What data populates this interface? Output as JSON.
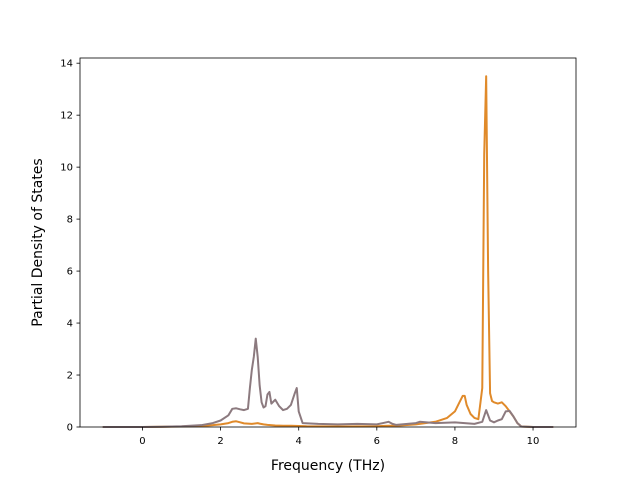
{
  "chart_data": {
    "type": "line",
    "xlabel": "Frequency (THz)",
    "ylabel": "Partial Density of States",
    "xlim": [
      -1.6,
      11.1
    ],
    "ylim": [
      0,
      14.2
    ],
    "xticks": [
      0,
      2,
      4,
      6,
      8,
      10
    ],
    "yticks": [
      0,
      2,
      4,
      6,
      8,
      10,
      12,
      14
    ],
    "grid": false,
    "legend": "none",
    "series": [
      {
        "color": "#e08a2a",
        "x": [
          -1.0,
          0.0,
          0.5,
          1.0,
          1.5,
          1.8,
          2.0,
          2.2,
          2.3,
          2.4,
          2.5,
          2.6,
          2.8,
          2.95,
          3.0,
          3.1,
          3.2,
          3.4,
          3.6,
          3.8,
          4.0,
          4.2,
          5.0,
          6.0,
          6.3,
          6.5,
          7.0,
          7.5,
          7.8,
          8.0,
          8.1,
          8.2,
          8.25,
          8.3,
          8.4,
          8.5,
          8.6,
          8.7,
          8.75,
          8.8,
          8.85,
          8.9,
          8.95,
          9.0,
          9.1,
          9.2,
          9.3,
          9.4,
          9.5,
          9.6,
          9.7,
          10.0,
          10.5
        ],
        "y": [
          0,
          0,
          0.01,
          0.02,
          0.04,
          0.07,
          0.1,
          0.15,
          0.2,
          0.22,
          0.18,
          0.14,
          0.12,
          0.15,
          0.13,
          0.1,
          0.08,
          0.06,
          0.05,
          0.05,
          0.04,
          0.03,
          0.02,
          0.03,
          0.05,
          0.05,
          0.1,
          0.2,
          0.35,
          0.6,
          0.9,
          1.2,
          1.2,
          0.85,
          0.5,
          0.35,
          0.3,
          1.5,
          10.5,
          13.5,
          6.0,
          1.3,
          1.0,
          0.95,
          0.9,
          0.95,
          0.8,
          0.6,
          0.4,
          0.15,
          0.02,
          0,
          0
        ]
      },
      {
        "color": "#8c7a7f",
        "x": [
          -1.0,
          0.0,
          0.5,
          1.0,
          1.5,
          1.8,
          2.0,
          2.2,
          2.3,
          2.4,
          2.5,
          2.6,
          2.7,
          2.75,
          2.8,
          2.85,
          2.9,
          2.95,
          3.0,
          3.05,
          3.1,
          3.15,
          3.2,
          3.25,
          3.3,
          3.4,
          3.5,
          3.6,
          3.7,
          3.8,
          3.9,
          3.95,
          4.0,
          4.1,
          4.5,
          5.0,
          5.5,
          6.0,
          6.3,
          6.4,
          6.5,
          7.0,
          7.1,
          7.5,
          8.0,
          8.5,
          8.7,
          8.8,
          8.85,
          8.9,
          9.0,
          9.1,
          9.2,
          9.3,
          9.4,
          9.5,
          9.6,
          9.7,
          10.0,
          10.5
        ],
        "y": [
          0,
          0,
          0.01,
          0.03,
          0.07,
          0.15,
          0.25,
          0.45,
          0.7,
          0.72,
          0.68,
          0.65,
          0.7,
          1.5,
          2.2,
          2.7,
          3.4,
          2.7,
          1.6,
          0.95,
          0.75,
          0.8,
          1.25,
          1.35,
          0.9,
          1.05,
          0.8,
          0.65,
          0.7,
          0.85,
          1.3,
          1.5,
          0.6,
          0.15,
          0.12,
          0.1,
          0.12,
          0.1,
          0.2,
          0.12,
          0.08,
          0.15,
          0.2,
          0.15,
          0.18,
          0.12,
          0.2,
          0.65,
          0.45,
          0.25,
          0.18,
          0.25,
          0.3,
          0.6,
          0.62,
          0.4,
          0.15,
          0.02,
          0,
          0
        ]
      }
    ]
  }
}
